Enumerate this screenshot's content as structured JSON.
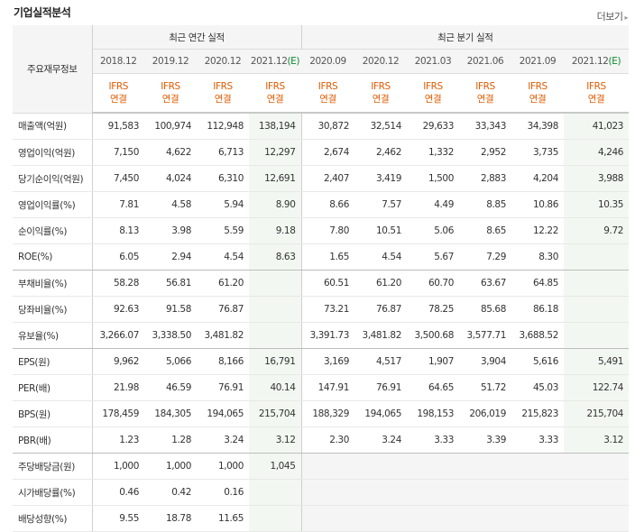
{
  "section": {
    "title": "기업실적분석",
    "more_label": "더보기"
  },
  "header": {
    "item_label": "주요재무정보",
    "annual_title": "최근 연간 실적",
    "quarter_title": "최근 분기 실적",
    "annual_periods": [
      "2018.12",
      "2019.12",
      "2020.12",
      "2021.12"
    ],
    "quarter_periods": [
      "2020.09",
      "2020.12",
      "2021.03",
      "2021.06",
      "2021.09",
      "2021.12"
    ],
    "estimate_mark": "(E)",
    "ifrs_label": "IFRS",
    "consol_label": "연결"
  },
  "rows": [
    {
      "label": "매출액(억원)",
      "values": [
        "91,583",
        "100,974",
        "112,948",
        "138,194",
        "30,872",
        "32,514",
        "29,633",
        "33,343",
        "34,398",
        "41,023"
      ]
    },
    {
      "label": "영업이익(억원)",
      "values": [
        "7,150",
        "4,622",
        "6,713",
        "12,297",
        "2,674",
        "2,462",
        "1,332",
        "2,952",
        "3,735",
        "4,246"
      ]
    },
    {
      "label": "당기순이익(억원)",
      "values": [
        "7,450",
        "4,024",
        "6,310",
        "12,691",
        "2,407",
        "3,419",
        "1,500",
        "2,883",
        "4,204",
        "3,988"
      ]
    },
    {
      "label": "영업이익률(%)",
      "values": [
        "7.81",
        "4.58",
        "5.94",
        "8.90",
        "8.66",
        "7.57",
        "4.49",
        "8.85",
        "10.86",
        "10.35"
      ]
    },
    {
      "label": "순이익률(%)",
      "values": [
        "8.13",
        "3.98",
        "5.59",
        "9.18",
        "7.80",
        "10.51",
        "5.06",
        "8.65",
        "12.22",
        "9.72"
      ]
    },
    {
      "label": "ROE(%)",
      "values": [
        "6.05",
        "2.94",
        "4.54",
        "8.63",
        "1.65",
        "4.54",
        "5.67",
        "7.29",
        "8.30",
        ""
      ]
    },
    {
      "label": "부채비율(%)",
      "values": [
        "58.28",
        "56.81",
        "61.20",
        "",
        "60.51",
        "61.20",
        "60.70",
        "63.67",
        "64.85",
        ""
      ]
    },
    {
      "label": "당좌비율(%)",
      "values": [
        "92.63",
        "91.58",
        "76.87",
        "",
        "73.21",
        "76.87",
        "78.25",
        "85.68",
        "86.18",
        ""
      ]
    },
    {
      "label": "유보율(%)",
      "values": [
        "3,266.07",
        "3,338.50",
        "3,481.82",
        "",
        "3,391.73",
        "3,481.82",
        "3,500.68",
        "3,577.71",
        "3,688.52",
        ""
      ]
    },
    {
      "label": "EPS(원)",
      "values": [
        "9,962",
        "5,066",
        "8,166",
        "16,791",
        "3,169",
        "4,517",
        "1,907",
        "3,904",
        "5,616",
        "5,491"
      ]
    },
    {
      "label": "PER(배)",
      "values": [
        "21.98",
        "46.59",
        "76.91",
        "40.14",
        "147.91",
        "76.91",
        "64.65",
        "51.72",
        "45.03",
        "122.74"
      ]
    },
    {
      "label": "BPS(원)",
      "values": [
        "178,459",
        "184,305",
        "194,065",
        "215,704",
        "188,329",
        "194,065",
        "198,153",
        "206,019",
        "215,823",
        "215,704"
      ]
    },
    {
      "label": "PBR(배)",
      "values": [
        "1.23",
        "1.28",
        "3.24",
        "3.12",
        "2.30",
        "3.24",
        "3.33",
        "3.39",
        "3.33",
        "3.12"
      ]
    },
    {
      "label": "주당배당금(원)",
      "values": [
        "1,000",
        "1,000",
        "1,000",
        "1,045",
        "",
        "",
        "",
        "",
        "",
        ""
      ]
    },
    {
      "label": "시가배당률(%)",
      "values": [
        "0.46",
        "0.42",
        "0.16",
        "",
        "",
        "",
        "",
        "",
        "",
        ""
      ]
    },
    {
      "label": "배당성향(%)",
      "values": [
        "9.55",
        "18.78",
        "11.65",
        "",
        "",
        "",
        "",
        "",
        "",
        ""
      ]
    }
  ]
}
